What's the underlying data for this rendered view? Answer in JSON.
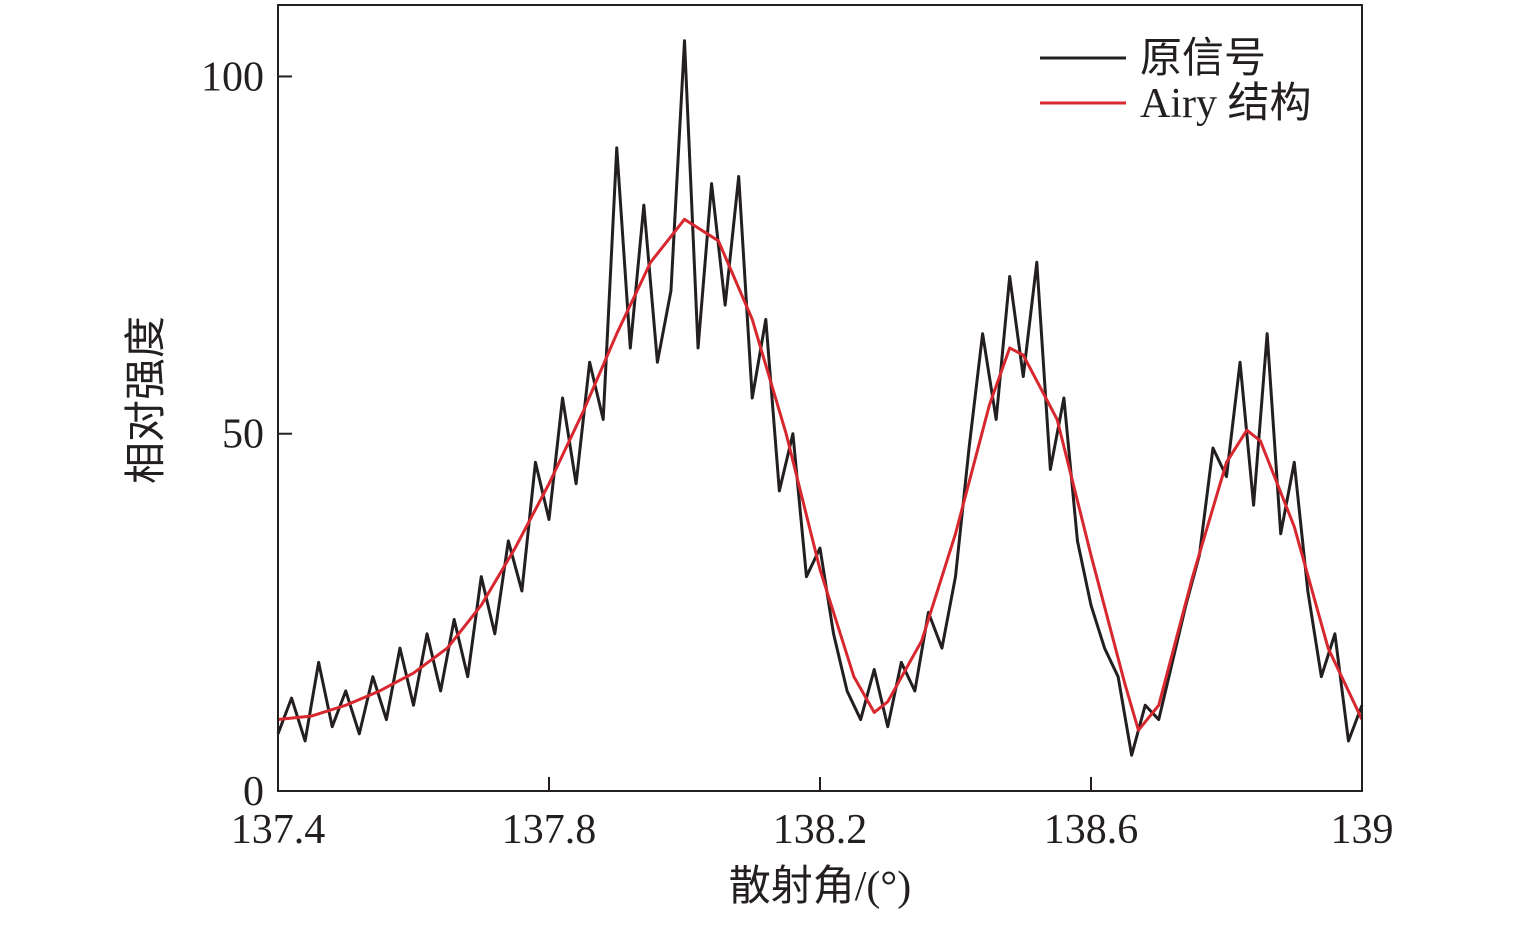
{
  "chart_data": {
    "type": "line",
    "xlabel": "散射角/(°)",
    "ylabel": "相对强度",
    "xlim": [
      137.4,
      139
    ],
    "ylim": [
      0,
      110
    ],
    "xticks": [
      137.4,
      137.8,
      138.2,
      138.6,
      139
    ],
    "yticks": [
      0,
      50,
      100
    ],
    "legend": "upper right",
    "series": [
      {
        "name": "原信号",
        "color": "#231f20",
        "x": [
          137.4,
          137.42,
          137.44,
          137.46,
          137.48,
          137.5,
          137.52,
          137.54,
          137.56,
          137.58,
          137.6,
          137.62,
          137.64,
          137.66,
          137.68,
          137.7,
          137.72,
          137.74,
          137.76,
          137.78,
          137.8,
          137.82,
          137.84,
          137.86,
          137.88,
          137.9,
          137.92,
          137.94,
          137.96,
          137.98,
          138.0,
          138.02,
          138.04,
          138.06,
          138.08,
          138.1,
          138.12,
          138.14,
          138.16,
          138.18,
          138.2,
          138.22,
          138.24,
          138.26,
          138.28,
          138.3,
          138.32,
          138.34,
          138.36,
          138.38,
          138.4,
          138.42,
          138.44,
          138.46,
          138.48,
          138.5,
          138.52,
          138.54,
          138.56,
          138.58,
          138.6,
          138.62,
          138.64,
          138.66,
          138.68,
          138.7,
          138.72,
          138.74,
          138.76,
          138.78,
          138.8,
          138.82,
          138.84,
          138.86,
          138.88,
          138.9,
          138.92,
          138.94,
          138.96,
          138.98,
          139.0
        ],
        "values": [
          8,
          13,
          7,
          18,
          9,
          14,
          8,
          16,
          10,
          20,
          12,
          22,
          14,
          24,
          16,
          30,
          22,
          35,
          28,
          46,
          38,
          55,
          43,
          60,
          52,
          90,
          62,
          82,
          60,
          70,
          105,
          62,
          85,
          68,
          86,
          55,
          66,
          42,
          50,
          30,
          34,
          22,
          14,
          10,
          17,
          9,
          18,
          14,
          25,
          20,
          30,
          48,
          64,
          52,
          72,
          58,
          74,
          45,
          55,
          35,
          26,
          20,
          16,
          5,
          12,
          10,
          18,
          26,
          33,
          48,
          44,
          60,
          40,
          64,
          36,
          46,
          28,
          16,
          22,
          7,
          12
        ]
      },
      {
        "name": "Airy 结构",
        "color": "#d7282f",
        "x": [
          137.4,
          137.45,
          137.5,
          137.55,
          137.6,
          137.65,
          137.7,
          137.75,
          137.8,
          137.85,
          137.9,
          137.95,
          138.0,
          138.05,
          138.1,
          138.15,
          138.2,
          138.25,
          138.28,
          138.3,
          138.35,
          138.4,
          138.45,
          138.48,
          138.5,
          138.55,
          138.6,
          138.65,
          138.67,
          138.7,
          138.75,
          138.8,
          138.83,
          138.85,
          138.9,
          138.95,
          139.0
        ],
        "values": [
          10,
          10.5,
          12,
          14,
          16.5,
          20,
          26,
          34,
          43,
          53,
          64,
          74,
          80,
          77,
          66,
          50,
          31,
          16,
          11,
          12.5,
          21,
          36,
          54,
          62,
          61,
          52,
          33,
          15,
          8.5,
          12,
          30,
          46,
          50.5,
          49,
          37,
          20,
          10
        ]
      }
    ]
  }
}
